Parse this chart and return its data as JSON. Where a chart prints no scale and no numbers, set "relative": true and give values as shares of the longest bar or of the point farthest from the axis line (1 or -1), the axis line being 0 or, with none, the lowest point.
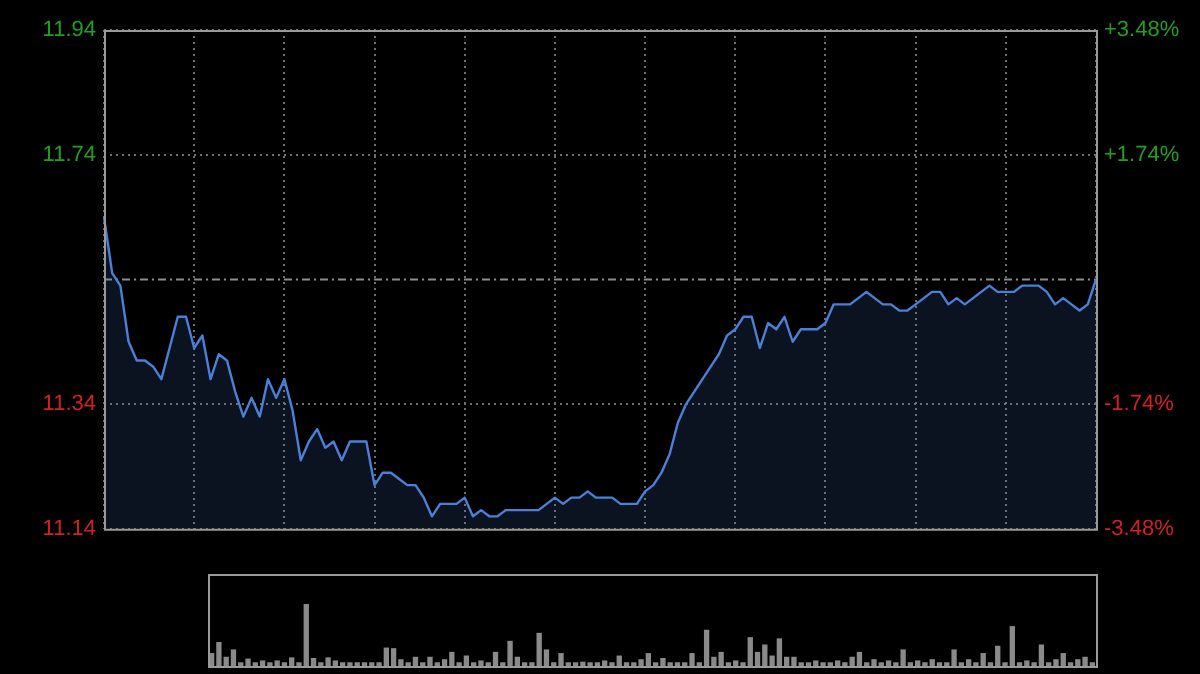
{
  "chart_data": [
    {
      "type": "area",
      "categories": [
        null,
        null,
        null,
        null,
        null,
        null,
        null,
        null,
        null,
        null,
        null,
        null,
        null,
        null,
        null,
        null,
        null,
        null,
        null,
        null,
        null,
        null,
        null,
        null,
        null,
        null,
        null,
        null,
        null,
        null,
        null,
        null,
        null,
        null,
        null,
        null,
        null,
        null,
        null,
        null,
        null,
        null,
        null,
        null,
        null,
        null,
        null,
        null,
        null,
        null,
        null,
        null,
        null,
        null,
        null,
        null,
        null,
        null,
        null,
        null,
        null,
        null,
        null,
        null,
        null,
        null,
        null,
        null,
        null,
        null,
        null,
        null,
        null,
        null,
        null,
        null,
        null,
        null,
        null,
        null,
        null,
        null,
        null,
        null,
        null,
        null,
        null,
        null,
        null,
        null,
        null,
        null,
        null,
        null,
        null,
        null,
        null,
        null,
        null,
        null,
        null,
        null,
        null,
        null,
        null,
        null,
        null,
        null,
        null,
        null,
        null,
        null,
        null,
        null,
        null,
        null,
        null,
        null,
        null,
        null,
        null,
        null
      ],
      "series": [
        {
          "color": "#4a80d8",
          "values": [
            11.64,
            11.55,
            11.53,
            11.44,
            11.41,
            11.41,
            11.4,
            11.38,
            11.43,
            11.48,
            11.48,
            11.43,
            11.45,
            11.38,
            11.42,
            11.41,
            11.36,
            11.32,
            11.35,
            11.32,
            11.38,
            11.35,
            11.38,
            11.33,
            11.25,
            11.28,
            11.3,
            11.27,
            11.28,
            11.25,
            11.28,
            11.28,
            11.28,
            11.21,
            11.23,
            11.23,
            11.22,
            11.21,
            11.21,
            11.19,
            11.16,
            11.18,
            11.18,
            11.18,
            11.19,
            11.16,
            11.17,
            11.16,
            11.16,
            11.17,
            11.17,
            11.17,
            11.17,
            11.17,
            11.18,
            11.19,
            11.18,
            11.19,
            11.19,
            11.2,
            11.19,
            11.19,
            11.19,
            11.18,
            11.18,
            11.18,
            11.2,
            11.21,
            11.23,
            11.26,
            11.31,
            11.34,
            11.36,
            11.38,
            11.4,
            11.42,
            11.45,
            11.46,
            11.48,
            11.48,
            11.43,
            11.47,
            11.46,
            11.48,
            11.44,
            11.46,
            11.46,
            11.46,
            11.47,
            11.5,
            11.5,
            11.5,
            11.51,
            11.52,
            11.51,
            11.5,
            11.5,
            11.49,
            11.49,
            11.5,
            11.51,
            11.52,
            11.52,
            11.5,
            11.51,
            11.5,
            11.51,
            11.52,
            11.53,
            11.52,
            11.52,
            11.52,
            11.53,
            11.53,
            11.53,
            11.52,
            11.5,
            11.51,
            11.5,
            11.49,
            11.5,
            11.54
          ]
        }
      ],
      "ylim": [
        11.14,
        11.94
      ],
      "yticks": [
        11.14,
        11.34,
        11.74,
        11.94
      ],
      "y2lim": [
        -3.48,
        3.48
      ],
      "y2ticks": [
        {
          "value": 3.48,
          "label": "+3.48%"
        },
        {
          "value": 1.74,
          "label": "+1.74%"
        },
        {
          "value": -1.74,
          "label": "-1.74%"
        },
        {
          "value": -3.48,
          "label": "-3.48%"
        }
      ],
      "ref_lines": [
        {
          "axis": "y",
          "value": 11.54,
          "color": "#8c8c8c",
          "line_style": "dashed"
        }
      ],
      "grid": true,
      "legend": false,
      "marker": "none"
    },
    {
      "type": "bar",
      "relative": true,
      "color": "#8a8a8a",
      "categories": [
        null,
        null,
        null,
        null,
        null,
        null,
        null,
        null,
        null,
        null,
        null,
        null,
        null,
        null,
        null,
        null,
        null,
        null,
        null,
        null,
        null,
        null,
        null,
        null,
        null,
        null,
        null,
        null,
        null,
        null,
        null,
        null,
        null,
        null,
        null,
        null,
        null,
        null,
        null,
        null,
        null,
        null,
        null,
        null,
        null,
        null,
        null,
        null,
        null,
        null,
        null,
        null,
        null,
        null,
        null,
        null,
        null,
        null,
        null,
        null,
        null,
        null,
        null,
        null,
        null,
        null,
        null,
        null,
        null,
        null,
        null,
        null,
        null,
        null,
        null,
        null,
        null,
        null,
        null,
        null,
        null,
        null,
        null,
        null,
        null,
        null,
        null,
        null,
        null,
        null,
        null,
        null,
        null,
        null,
        null,
        null,
        null,
        null,
        null,
        null,
        null,
        null,
        null,
        null,
        null,
        null,
        null,
        null,
        null,
        null,
        null,
        null,
        null,
        null,
        null,
        null,
        null,
        null,
        null,
        null,
        null,
        null
      ],
      "values": [
        0.2,
        0.38,
        0.14,
        0.26,
        0.05,
        0.11,
        0.05,
        0.08,
        0.05,
        0.08,
        0.05,
        0.13,
        0.05,
        1,
        0.12,
        0.05,
        0.13,
        0.08,
        0.05,
        0.05,
        0.05,
        0.05,
        0.05,
        0.05,
        0.29,
        0.28,
        0.1,
        0.05,
        0.14,
        0.05,
        0.14,
        0.05,
        0.1,
        0.22,
        0.05,
        0.16,
        0.05,
        0.08,
        0.05,
        0.22,
        0.05,
        0.4,
        0.14,
        0.05,
        0.05,
        0.53,
        0.26,
        0.05,
        0.2,
        0.05,
        0.05,
        0.06,
        0.05,
        0.05,
        0.08,
        0.05,
        0.16,
        0.05,
        0.05,
        0.1,
        0.2,
        0.05,
        0.12,
        0.05,
        0.05,
        0.05,
        0.2,
        0.05,
        0.58,
        0.14,
        0.22,
        0.05,
        0.08,
        0.05,
        0.46,
        0.22,
        0.34,
        0.16,
        0.44,
        0.14,
        0.14,
        0.05,
        0.05,
        0.08,
        0.05,
        0.05,
        0.08,
        0.05,
        0.14,
        0.22,
        0.05,
        0.1,
        0.05,
        0.08,
        0.05,
        0.26,
        0.05,
        0.08,
        0.05,
        0.1,
        0.05,
        0.05,
        0.26,
        0.05,
        0.1,
        0.05,
        0.2,
        0.05,
        0.32,
        0.05,
        0.64,
        0.05,
        0.08,
        0.05,
        0.34,
        0.05,
        0.1,
        0.2,
        0.05,
        0.1,
        0.14,
        0.05
      ],
      "legend": false
    }
  ]
}
